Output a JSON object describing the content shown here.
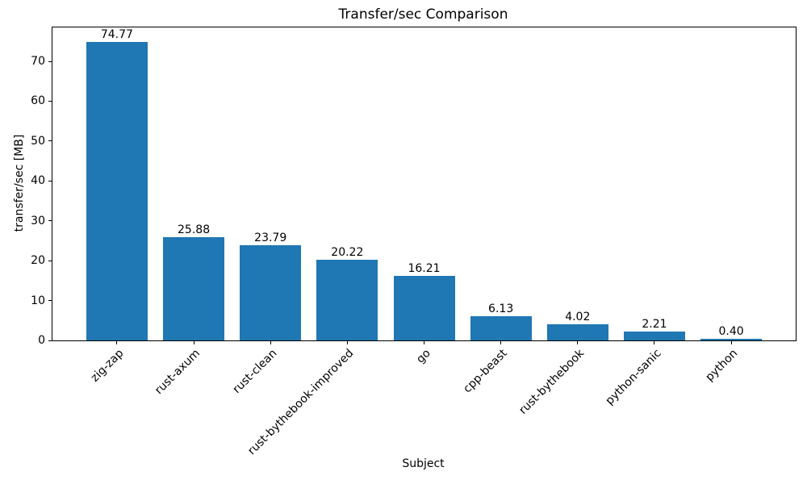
{
  "chart_data": {
    "type": "bar",
    "title": "Transfer/sec Comparison",
    "xlabel": "Subject",
    "ylabel": "transfer/sec [MB]",
    "categories": [
      "zig-zap",
      "rust-axum",
      "rust-clean",
      "rust-bythebook-improved",
      "go",
      "cpp-beast",
      "rust-bythebook",
      "python-sanic",
      "python"
    ],
    "values": [
      74.77,
      25.88,
      23.79,
      20.22,
      16.21,
      6.13,
      4.02,
      2.21,
      0.4
    ],
    "value_labels": [
      "74.77",
      "25.88",
      "23.79",
      "20.22",
      "16.21",
      "6.13",
      "4.02",
      "2.21",
      "0.40"
    ],
    "bar_color": "#1f77b4",
    "text_color": "#000000",
    "ylim": [
      0,
      78.5
    ],
    "yticks": [
      0,
      10,
      20,
      30,
      40,
      50,
      60,
      70
    ],
    "grid": false,
    "legend": "none",
    "x_tick_rotation": 45
  }
}
